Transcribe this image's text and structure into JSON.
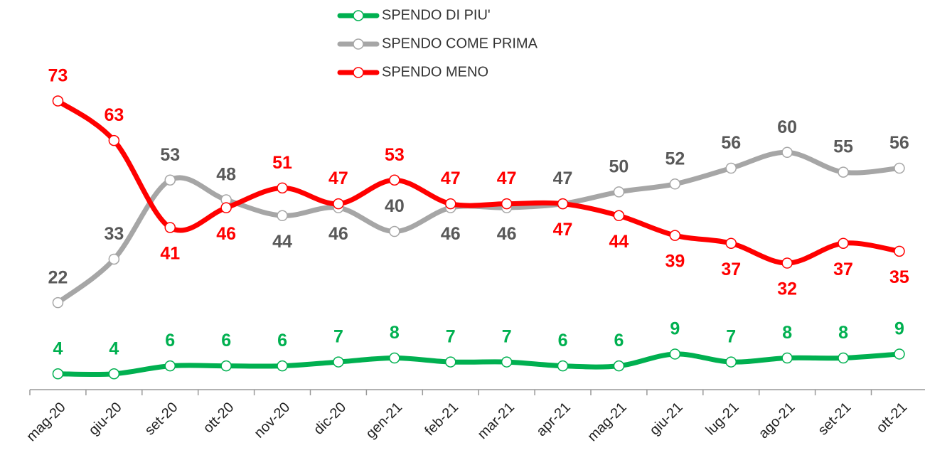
{
  "chart_data": {
    "type": "line",
    "categories": [
      "mag-20",
      "giu-20",
      "set-20",
      "ott-20",
      "nov-20",
      "dic-20",
      "gen-21",
      "feb-21",
      "mar-21",
      "apr-21",
      "mag-21",
      "giu-21",
      "lug-21",
      "ago-21",
      "set-21",
      "ott-21"
    ],
    "series": [
      {
        "name": "SPENDO DI PIU'",
        "color": "#00b050",
        "values": [
          4,
          4,
          6,
          6,
          6,
          7,
          8,
          7,
          7,
          6,
          6,
          9,
          7,
          8,
          8,
          9
        ]
      },
      {
        "name": "SPENDO COME PRIMA",
        "color": "#a6a6a6",
        "label_color": "#595959",
        "values": [
          22,
          33,
          53,
          48,
          44,
          46,
          40,
          46,
          46,
          47,
          50,
          52,
          56,
          60,
          55,
          56
        ]
      },
      {
        "name": "SPENDO MENO",
        "color": "#ff0000",
        "values": [
          73,
          63,
          41,
          46,
          51,
          47,
          53,
          47,
          47,
          47,
          44,
          39,
          37,
          32,
          37,
          35
        ]
      }
    ]
  }
}
